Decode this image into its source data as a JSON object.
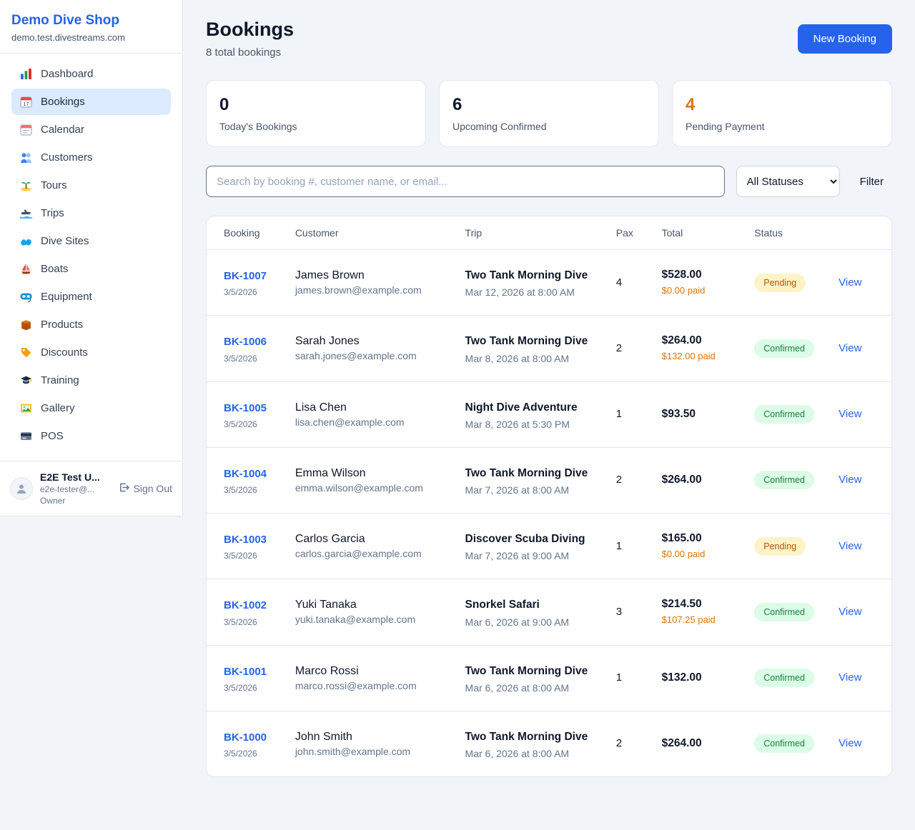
{
  "brand": {
    "name": "Demo Dive Shop",
    "domain": "demo.test.divestreams.com"
  },
  "sidebar": {
    "items": [
      {
        "icon": "bar-chart",
        "label": "Dashboard",
        "active": false
      },
      {
        "icon": "calendar",
        "label": "Bookings",
        "active": true
      },
      {
        "icon": "calendar-alt",
        "label": "Calendar",
        "active": false
      },
      {
        "icon": "users",
        "label": "Customers",
        "active": false
      },
      {
        "icon": "palm-island",
        "label": "Tours",
        "active": false
      },
      {
        "icon": "speedboat",
        "label": "Trips",
        "active": false
      },
      {
        "icon": "wave",
        "label": "Dive Sites",
        "active": false
      },
      {
        "icon": "sailboat",
        "label": "Boats",
        "active": false
      },
      {
        "icon": "dive-mask",
        "label": "Equipment",
        "active": false
      },
      {
        "icon": "box",
        "label": "Products",
        "active": false
      },
      {
        "icon": "tag",
        "label": "Discounts",
        "active": false
      },
      {
        "icon": "grad-cap",
        "label": "Training",
        "active": false
      },
      {
        "icon": "picture",
        "label": "Gallery",
        "active": false
      },
      {
        "icon": "credit-card",
        "label": "POS",
        "active": false
      }
    ]
  },
  "user": {
    "name": "E2E Test U...",
    "email": "e2e-tester@...",
    "role": "Owner",
    "sign_out": "Sign Out"
  },
  "header": {
    "title": "Bookings",
    "subtitle": "8 total bookings",
    "new_booking_label": "New Booking"
  },
  "stats": [
    {
      "value": "0",
      "label": "Today's Bookings",
      "accent": "default"
    },
    {
      "value": "6",
      "label": "Upcoming Confirmed",
      "accent": "default"
    },
    {
      "value": "4",
      "label": "Pending Payment",
      "accent": "orange"
    }
  ],
  "filters": {
    "search_placeholder": "Search by booking #, customer name, or email...",
    "status_options": [
      "All Statuses"
    ],
    "status_selected": "All Statuses",
    "filter_label": "Filter"
  },
  "table": {
    "headers": [
      "Booking",
      "Customer",
      "Trip",
      "Pax",
      "Total",
      "Status",
      ""
    ],
    "view_label": "View",
    "rows": [
      {
        "id": "BK-1007",
        "date": "3/5/2026",
        "customer_name": "James Brown",
        "customer_email": "james.brown@example.com",
        "trip_name": "Two Tank Morning Dive",
        "trip_datetime": "Mar 12, 2026 at 8:00 AM",
        "pax": 4,
        "total": "$528.00",
        "paid": "$0.00 paid",
        "status": "Pending"
      },
      {
        "id": "BK-1006",
        "date": "3/5/2026",
        "customer_name": "Sarah Jones",
        "customer_email": "sarah.jones@example.com",
        "trip_name": "Two Tank Morning Dive",
        "trip_datetime": "Mar 8, 2026 at 8:00 AM",
        "pax": 2,
        "total": "$264.00",
        "paid": "$132.00 paid",
        "status": "Confirmed"
      },
      {
        "id": "BK-1005",
        "date": "3/5/2026",
        "customer_name": "Lisa Chen",
        "customer_email": "lisa.chen@example.com",
        "trip_name": "Night Dive Adventure",
        "trip_datetime": "Mar 8, 2026 at 5:30 PM",
        "pax": 1,
        "total": "$93.50",
        "paid": "",
        "status": "Confirmed"
      },
      {
        "id": "BK-1004",
        "date": "3/5/2026",
        "customer_name": "Emma Wilson",
        "customer_email": "emma.wilson@example.com",
        "trip_name": "Two Tank Morning Dive",
        "trip_datetime": "Mar 7, 2026 at 8:00 AM",
        "pax": 2,
        "total": "$264.00",
        "paid": "",
        "status": "Confirmed"
      },
      {
        "id": "BK-1003",
        "date": "3/5/2026",
        "customer_name": "Carlos Garcia",
        "customer_email": "carlos.garcia@example.com",
        "trip_name": "Discover Scuba Diving",
        "trip_datetime": "Mar 7, 2026 at 9:00 AM",
        "pax": 1,
        "total": "$165.00",
        "paid": "$0.00 paid",
        "status": "Pending"
      },
      {
        "id": "BK-1002",
        "date": "3/5/2026",
        "customer_name": "Yuki Tanaka",
        "customer_email": "yuki.tanaka@example.com",
        "trip_name": "Snorkel Safari",
        "trip_datetime": "Mar 6, 2026 at 9:00 AM",
        "pax": 3,
        "total": "$214.50",
        "paid": "$107.25 paid",
        "status": "Confirmed"
      },
      {
        "id": "BK-1001",
        "date": "3/5/2026",
        "customer_name": "Marco Rossi",
        "customer_email": "marco.rossi@example.com",
        "trip_name": "Two Tank Morning Dive",
        "trip_datetime": "Mar 6, 2026 at 8:00 AM",
        "pax": 1,
        "total": "$132.00",
        "paid": "",
        "status": "Confirmed"
      },
      {
        "id": "BK-1000",
        "date": "3/5/2026",
        "customer_name": "John Smith",
        "customer_email": "john.smith@example.com",
        "trip_name": "Two Tank Morning Dive",
        "trip_datetime": "Mar 6, 2026 at 8:00 AM",
        "pax": 2,
        "total": "$264.00",
        "paid": "",
        "status": "Confirmed"
      }
    ]
  },
  "colors": {
    "accent_blue": "#2563eb",
    "pending_text": "#b45309",
    "pending_bg": "#fef3c7",
    "confirmed_text": "#15803d",
    "confirmed_bg": "#dcfce7",
    "paid_orange": "#d97706"
  }
}
